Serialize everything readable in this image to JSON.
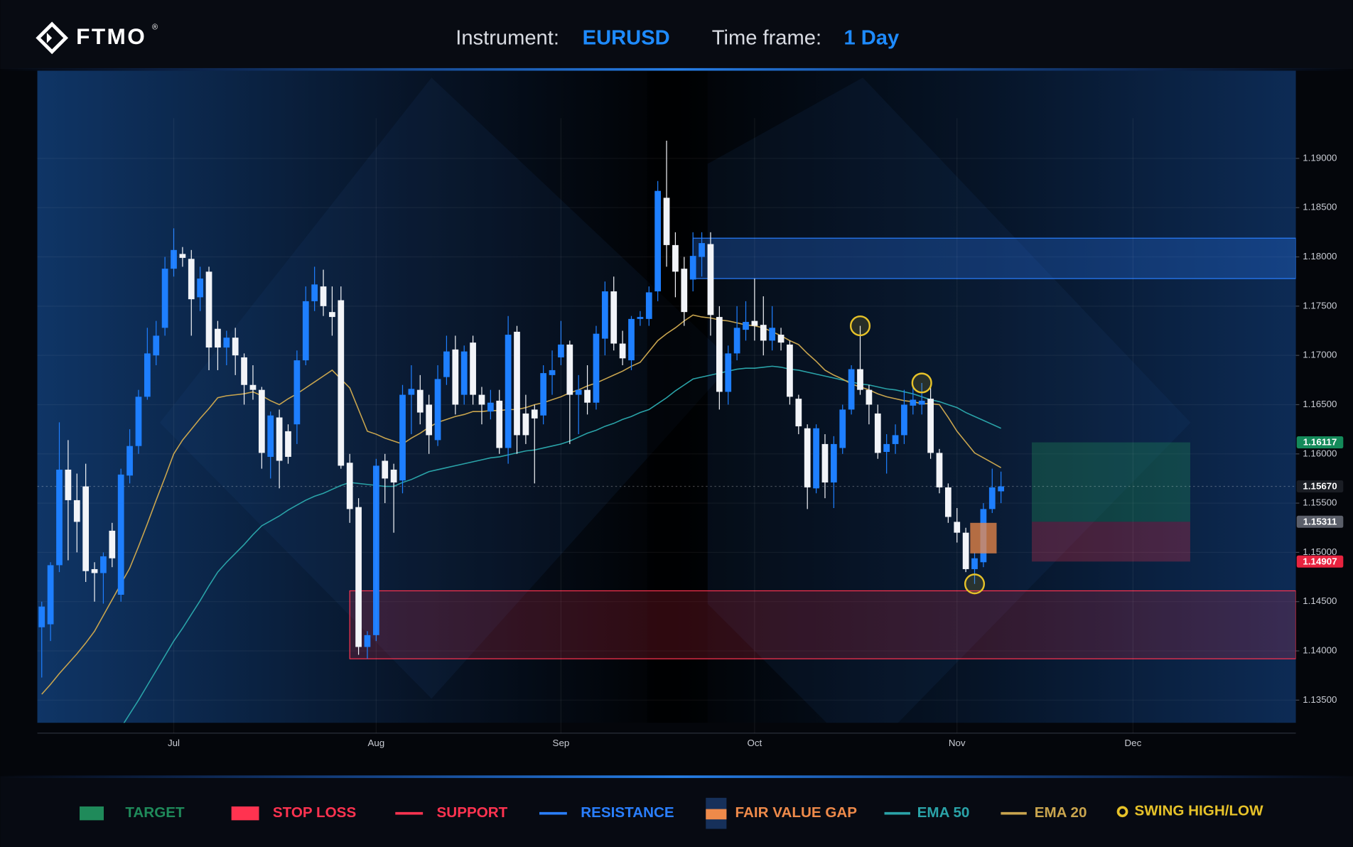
{
  "header": {
    "logo": "FTMO",
    "registered": "®",
    "instrument_label": "Instrument:",
    "instrument": "EURUSD",
    "timeframe_label": "Time frame:",
    "timeframe": "1 Day"
  },
  "chart_data": {
    "type": "candlestick",
    "categories": [
      null,
      null,
      null,
      null,
      null,
      null,
      null,
      null,
      null,
      null,
      null,
      null,
      null,
      null,
      null,
      "Jul",
      null,
      null,
      null,
      null,
      null,
      null,
      null,
      null,
      null,
      null,
      null,
      null,
      null,
      null,
      null,
      null,
      null,
      null,
      null,
      null,
      null,
      null,
      "Aug",
      null,
      null,
      null,
      null,
      null,
      null,
      null,
      null,
      null,
      null,
      null,
      null,
      null,
      null,
      null,
      null,
      null,
      null,
      null,
      null,
      "Sep",
      null,
      null,
      null,
      null,
      null,
      null,
      null,
      null,
      null,
      null,
      null,
      null,
      null,
      null,
      null,
      null,
      null,
      null,
      null,
      null,
      null,
      "Oct",
      null,
      null,
      null,
      null,
      null,
      null,
      null,
      null,
      null,
      null,
      null,
      null,
      null,
      null,
      null,
      null,
      null,
      null,
      null,
      null,
      null,
      null,
      "Nov",
      null,
      null,
      null,
      null,
      null,
      null,
      null,
      null,
      null,
      null,
      null,
      null,
      null,
      null,
      null,
      null,
      null,
      null,
      null,
      "Dec",
      null,
      null,
      null,
      null,
      null,
      null,
      null,
      null,
      null,
      null,
      null,
      null,
      null,
      null,
      null,
      null,
      null,
      null
    ],
    "open": [
      1.1424,
      1.1427,
      1.1487,
      1.1584,
      1.1553,
      1.1567,
      1.1483,
      1.1479,
      1.1522,
      1.1457,
      1.1578,
      1.1608,
      1.1658,
      1.17,
      1.1728,
      1.1788,
      1.1803,
      1.1798,
      1.1759,
      1.1785,
      1.1727,
      1.1708,
      1.1718,
      1.1698,
      1.167,
      1.1665,
      1.1597,
      1.1637,
      1.1623,
      1.163,
      1.1695,
      1.1755,
      1.177,
      1.1744,
      1.1756,
      1.1591,
      1.1546,
      1.1404,
      1.1416,
      1.1593,
      1.1584,
      1.1573,
      1.166,
      1.1665,
      1.165,
      1.1614,
      1.1678,
      1.1706,
      1.166,
      1.1713,
      1.166,
      1.1643,
      1.1654,
      1.1606,
      1.1724,
      1.1641,
      1.1645,
      1.1639,
      1.168,
      1.1698,
      1.1711,
      1.166,
      1.1665,
      1.1652,
      1.1717,
      1.1765,
      1.1712,
      1.1695,
      1.1737,
      1.1737,
      1.1765,
      1.186,
      1.1812,
      1.1788,
      1.1777,
      1.18,
      1.1813,
      1.1739,
      1.1663,
      1.1702,
      1.1726,
      1.1735,
      1.1731,
      1.1715,
      1.1721,
      1.1711,
      1.1656,
      1.1626,
      1.1565,
      1.161,
      1.1571,
      1.1606,
      1.1645,
      1.1686,
      1.1665,
      1.1641,
      1.1602,
      1.161,
      1.1619,
      1.1649,
      1.165,
      1.1656,
      1.1601,
      1.1566,
      1.1531,
      1.152,
      1.1483,
      1.149,
      1.1544,
      1.1562,
      null,
      null,
      null,
      null,
      null,
      null,
      null,
      null,
      null,
      null,
      null,
      null,
      null,
      null,
      null,
      null,
      null,
      null,
      null,
      null,
      null,
      null,
      null,
      null,
      null,
      null,
      null,
      null,
      null,
      null,
      null,
      null,
      null
    ],
    "high": [
      1.145,
      1.149,
      1.1632,
      1.1614,
      1.158,
      1.159,
      1.149,
      1.15,
      1.153,
      1.1585,
      1.1625,
      1.1665,
      1.1728,
      1.1735,
      1.18,
      1.1829,
      1.181,
      1.1807,
      1.179,
      1.179,
      1.1735,
      1.1725,
      1.1728,
      1.1702,
      1.169,
      1.1668,
      1.1643,
      1.1645,
      1.163,
      1.1705,
      1.177,
      1.179,
      1.1787,
      1.177,
      1.177,
      1.16,
      1.1555,
      1.142,
      1.1595,
      1.16,
      1.159,
      1.167,
      1.169,
      1.168,
      1.166,
      1.169,
      1.172,
      1.172,
      1.171,
      1.172,
      1.1668,
      1.1665,
      1.1665,
      1.174,
      1.173,
      1.166,
      1.165,
      1.169,
      1.1705,
      1.1735,
      1.1715,
      1.168,
      1.169,
      1.173,
      1.1775,
      1.178,
      1.1725,
      1.174,
      1.1745,
      1.177,
      1.1877,
      1.1918,
      1.1825,
      1.18,
      1.1825,
      1.1825,
      1.1825,
      1.175,
      1.171,
      1.175,
      1.1755,
      1.1778,
      1.176,
      1.175,
      1.1728,
      1.1715,
      1.166,
      1.163,
      1.163,
      1.162,
      1.1618,
      1.165,
      1.169,
      1.173,
      1.167,
      1.165,
      1.162,
      1.163,
      1.1665,
      1.167,
      1.1672,
      1.167,
      1.1605,
      1.157,
      1.1545,
      1.1525,
      1.15,
      1.155,
      1.1585,
      1.1582,
      null,
      null,
      null,
      null,
      null,
      null,
      null,
      null,
      null,
      null,
      null,
      null,
      null,
      null,
      null,
      null,
      null,
      null,
      null,
      null,
      null,
      null,
      null,
      null,
      null,
      null,
      null,
      null,
      null,
      null,
      null,
      null,
      null
    ],
    "low": [
      1.1373,
      1.141,
      1.148,
      1.1492,
      1.15,
      1.147,
      1.145,
      1.1448,
      1.1485,
      1.145,
      1.157,
      1.16,
      1.1655,
      1.169,
      1.172,
      1.178,
      1.179,
      1.172,
      1.1745,
      1.1685,
      1.1685,
      1.169,
      1.168,
      1.165,
      1.1655,
      1.1585,
      1.1575,
      1.1565,
      1.159,
      1.161,
      1.169,
      1.1745,
      1.174,
      1.172,
      1.1585,
      1.153,
      1.1396,
      1.1392,
      1.141,
      1.155,
      1.152,
      1.156,
      1.162,
      1.163,
      1.16,
      1.1608,
      1.167,
      1.164,
      1.165,
      1.165,
      1.163,
      1.1635,
      1.16,
      1.159,
      1.16,
      1.161,
      1.157,
      1.163,
      1.166,
      1.169,
      1.161,
      1.162,
      1.164,
      1.1645,
      1.17,
      1.1705,
      1.169,
      1.1685,
      1.173,
      1.173,
      1.1755,
      1.179,
      1.1759,
      1.173,
      1.1765,
      1.178,
      1.172,
      1.1645,
      1.165,
      1.1695,
      1.1715,
      1.1715,
      1.17,
      1.1705,
      1.1705,
      1.165,
      1.162,
      1.1544,
      1.156,
      1.1555,
      1.1545,
      1.16,
      1.164,
      1.166,
      1.163,
      1.1595,
      1.158,
      1.16,
      1.161,
      1.164,
      1.164,
      1.1595,
      1.156,
      1.153,
      1.151,
      1.148,
      1.1468,
      1.1485,
      1.154,
      1.155,
      null,
      null,
      null,
      null,
      null,
      null,
      null,
      null,
      null,
      null,
      null,
      null,
      null,
      null,
      null,
      null,
      null,
      null,
      null,
      null,
      null,
      null,
      null,
      null,
      null,
      null,
      null,
      null,
      null,
      null,
      null,
      null,
      null
    ],
    "close": [
      1.1445,
      1.1487,
      1.1584,
      1.1553,
      1.1531,
      1.1481,
      1.1479,
      1.1496,
      1.1494,
      1.1579,
      1.1608,
      1.1658,
      1.1702,
      1.172,
      1.1788,
      1.1807,
      1.1799,
      1.1757,
      1.1778,
      1.1708,
      1.1708,
      1.1718,
      1.17,
      1.167,
      1.1665,
      1.1601,
      1.1639,
      1.1593,
      1.1597,
      1.1695,
      1.1755,
      1.1772,
      1.175,
      1.1739,
      1.1588,
      1.1544,
      1.1404,
      1.1416,
      1.1588,
      1.1575,
      1.1571,
      1.166,
      1.1666,
      1.1642,
      1.1619,
      1.1676,
      1.1704,
      1.165,
      1.1704,
      1.166,
      1.165,
      1.1652,
      1.1606,
      1.1721,
      1.1619,
      1.1619,
      1.1636,
      1.1682,
      1.1685,
      1.1711,
      1.166,
      1.1665,
      1.1652,
      1.1722,
      1.1765,
      1.1712,
      1.1697,
      1.1737,
      1.1739,
      1.1764,
      1.1867,
      1.1812,
      1.1785,
      1.1744,
      1.1801,
      1.1814,
      1.1741,
      1.1663,
      1.1702,
      1.1728,
      1.1734,
      1.173,
      1.1715,
      1.1728,
      1.1713,
      1.1658,
      1.1628,
      1.1566,
      1.1626,
      1.1571,
      1.161,
      1.1645,
      1.1686,
      1.1665,
      1.165,
      1.1601,
      1.161,
      1.1619,
      1.165,
      1.1655,
      1.1654,
      1.1601,
      1.1566,
      1.1536,
      1.152,
      1.1483,
      1.1494,
      1.1544,
      1.1566,
      1.1567,
      null,
      null,
      null,
      null,
      null,
      null,
      null,
      null,
      null,
      null,
      null,
      null,
      null,
      null,
      null,
      null,
      null,
      null,
      null,
      null,
      null,
      null,
      null,
      null,
      null,
      null,
      null,
      null,
      null,
      null,
      null,
      null,
      null
    ],
    "up_color": "#1e7fff",
    "down_color": "#f2f4f8",
    "lines": [
      {
        "name": "EMA 50",
        "color": "#2aa3a8",
        "values": [
          null,
          null,
          null,
          null,
          null,
          null,
          null,
          null,
          null,
          1.1322,
          1.1336,
          1.135,
          1.1365,
          1.138,
          1.1395,
          1.141,
          1.1423,
          1.1437,
          1.1451,
          1.1466,
          1.148,
          1.149,
          1.1499,
          1.1508,
          1.1518,
          1.1527,
          1.1532,
          1.1537,
          1.1543,
          1.1548,
          1.1553,
          1.1557,
          1.156,
          1.1564,
          1.1568,
          1.1571,
          1.157,
          1.1569,
          1.1568,
          1.1567,
          1.1567,
          1.1571,
          1.1574,
          1.1578,
          1.1582,
          1.1584,
          1.1586,
          1.1588,
          1.159,
          1.1592,
          1.1594,
          1.1596,
          1.1597,
          1.1599,
          1.1601,
          1.1603,
          1.1604,
          1.1606,
          1.1608,
          1.161,
          1.1613,
          1.1617,
          1.1621,
          1.1624,
          1.1628,
          1.1631,
          1.1635,
          1.1638,
          1.1642,
          1.1645,
          1.1651,
          1.1657,
          1.1664,
          1.167,
          1.1676,
          1.1678,
          1.168,
          1.1682,
          1.1684,
          1.1686,
          1.1687,
          1.1687,
          1.1688,
          1.1689,
          1.1688,
          1.1686,
          1.1685,
          1.1683,
          1.1681,
          1.1679,
          1.1677,
          1.1675,
          1.1673,
          1.1671,
          1.167,
          1.1668,
          1.1666,
          1.1665,
          1.1663,
          1.1661,
          1.1658,
          1.1655,
          1.1653,
          1.165,
          1.1647,
          1.1642,
          1.1638,
          1.1634,
          1.163,
          1.1626,
          null,
          null,
          null,
          null,
          null,
          null,
          null,
          null,
          null,
          null,
          null,
          null,
          null,
          null,
          null,
          null,
          null,
          null,
          null,
          null,
          null,
          null,
          null,
          null,
          null,
          null,
          null,
          null,
          null,
          null,
          null,
          null,
          null
        ]
      },
      {
        "name": "EMA 20",
        "color": "#c9a54e",
        "values": [
          1.1356,
          1.1366,
          1.1377,
          1.1387,
          1.1397,
          1.1408,
          1.142,
          1.1436,
          1.1452,
          1.1468,
          1.1484,
          1.1506,
          1.1529,
          1.1553,
          1.1576,
          1.16,
          1.1614,
          1.1625,
          1.1636,
          1.1646,
          1.1657,
          1.1659,
          1.166,
          1.1661,
          1.1663,
          1.1659,
          1.1654,
          1.165,
          1.1656,
          1.1661,
          1.1667,
          1.1673,
          1.1679,
          1.1685,
          1.1676,
          1.1667,
          1.1645,
          1.1623,
          1.162,
          1.1616,
          1.1613,
          1.161,
          1.1616,
          1.1621,
          1.1627,
          1.1632,
          1.1635,
          1.1638,
          1.164,
          1.1643,
          1.1643,
          1.1644,
          1.1644,
          1.1645,
          1.1645,
          1.1647,
          1.165,
          1.1652,
          1.1655,
          1.1658,
          1.1662,
          1.1665,
          1.1669,
          1.1672,
          1.1676,
          1.168,
          1.1684,
          1.1689,
          1.1693,
          1.1704,
          1.1715,
          1.1722,
          1.1728,
          1.1735,
          1.1741,
          1.1739,
          1.1738,
          1.1736,
          1.1735,
          1.1733,
          1.1731,
          1.173,
          1.1728,
          1.1724,
          1.172,
          1.1715,
          1.1711,
          1.1702,
          1.1694,
          1.1685,
          1.168,
          1.1676,
          1.1671,
          1.1668,
          1.1665,
          1.1661,
          1.1658,
          1.1656,
          1.1654,
          1.1653,
          1.1651,
          1.1651,
          1.165,
          1.1637,
          1.1623,
          1.1612,
          1.1601,
          1.1596,
          1.1591,
          1.1586,
          null,
          null,
          null,
          null,
          null,
          null,
          null,
          null,
          null,
          null,
          null,
          null,
          null,
          null,
          null,
          null,
          null,
          null,
          null,
          null,
          null,
          null,
          null,
          null,
          null,
          null,
          null,
          null,
          null,
          null,
          null,
          null,
          null
        ]
      }
    ],
    "zones": [
      {
        "name": "TARGET",
        "color": "#1f8a5a",
        "low": 1.15311,
        "high": 1.16117,
        "start": 113,
        "end": 130
      },
      {
        "name": "STOP LOSS",
        "color": "#ff3350",
        "low": 1.14907,
        "high": 1.15311,
        "start": 113,
        "end": 130
      },
      {
        "name": "SUPPORT",
        "color": "#ff3350",
        "low": 1.1392,
        "high": 1.1461,
        "start": 35
      },
      {
        "name": "RESISTANCE",
        "color": "#2a7fff",
        "low": 1.1778,
        "high": 1.1819,
        "start": 74
      },
      {
        "name": "FAIR VALUE GAP",
        "color": "#ee8a4a",
        "low": 1.1499,
        "high": 1.153,
        "start": 106,
        "end": 108
      }
    ],
    "swings": {
      "name": "SWING HIGH/LOW",
      "color": "#e6c229",
      "points": [
        {
          "index": 93,
          "value": 1.173
        },
        {
          "index": 100,
          "value": 1.1672
        },
        {
          "index": 106,
          "value": 1.1468
        }
      ]
    },
    "last_price": {
      "value": 1.1567,
      "label": "1.15670"
    },
    "ylim": [
      1.1327,
      1.1989
    ],
    "yticks": [
      {
        "value": 1.135,
        "label": "1.13500"
      },
      {
        "value": 1.14,
        "label": "1.14000"
      },
      {
        "value": 1.145,
        "label": "1.14500"
      },
      {
        "value": 1.15,
        "label": "1.15000"
      },
      {
        "value": 1.155,
        "label": "1.15500"
      },
      {
        "value": 1.16,
        "label": "1.16000"
      },
      {
        "value": 1.165,
        "label": "1.16500"
      },
      {
        "value": 1.17,
        "label": "1.17000"
      },
      {
        "value": 1.175,
        "label": "1.17500"
      },
      {
        "value": 1.18,
        "label": "1.18000"
      },
      {
        "value": 1.185,
        "label": "1.18500"
      },
      {
        "value": 1.19,
        "label": "1.19000"
      }
    ],
    "grid": true
  }
}
